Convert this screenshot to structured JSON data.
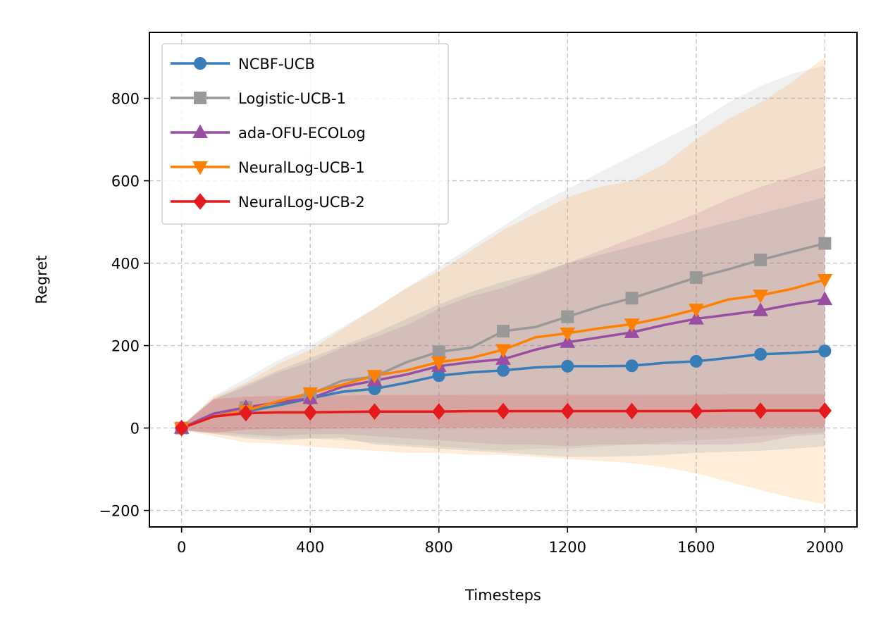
{
  "chart_data": {
    "type": "line",
    "title": "",
    "xlabel": "Timesteps",
    "ylabel": "Regret",
    "xlim": [
      -100,
      2100
    ],
    "ylim": [
      -240,
      960
    ],
    "xticks": [
      0,
      400,
      800,
      1200,
      1600,
      2000
    ],
    "xtick_labels": [
      "0",
      "400",
      "800",
      "1200",
      "1600",
      "2000"
    ],
    "yticks": [
      -200,
      0,
      200,
      400,
      600,
      800
    ],
    "ytick_labels": [
      "−200",
      "0",
      "200",
      "400",
      "600",
      "800"
    ],
    "grid": true,
    "legend_position": "top-left",
    "series": [
      {
        "name": "NCBF-UCB",
        "color": "#377eb8",
        "marker": "circle",
        "x": [
          0,
          100,
          200,
          300,
          400,
          500,
          600,
          700,
          800,
          900,
          1000,
          1100,
          1200,
          1300,
          1400,
          1500,
          1600,
          1700,
          1800,
          1900,
          2000
        ],
        "y": [
          0,
          28,
          40,
          55,
          72,
          88,
          95,
          110,
          127,
          135,
          140,
          147,
          150,
          150,
          151,
          158,
          162,
          170,
          179,
          182,
          187
        ],
        "band_upper": [
          5,
          70,
          105,
          140,
          170,
          200,
          230,
          265,
          300,
          330,
          355,
          375,
          400,
          420,
          440,
          460,
          480,
          500,
          520,
          540,
          560
        ],
        "band_lower": [
          -5,
          -14,
          -25,
          -30,
          -26,
          -24,
          -40,
          -45,
          -50,
          -55,
          -60,
          -65,
          -70,
          -70,
          -68,
          -65,
          -60,
          -58,
          -55,
          -50,
          -45
        ]
      },
      {
        "name": "Logistic-UCB-1",
        "color": "#999999",
        "marker": "square",
        "x": [
          0,
          100,
          200,
          300,
          400,
          500,
          600,
          700,
          800,
          900,
          1000,
          1100,
          1200,
          1300,
          1400,
          1500,
          1600,
          1700,
          1800,
          1900,
          2000
        ],
        "y": [
          0,
          32,
          50,
          62,
          82,
          115,
          125,
          160,
          185,
          195,
          235,
          245,
          270,
          295,
          315,
          340,
          365,
          385,
          408,
          428,
          448
        ],
        "band_upper": [
          5,
          78,
          120,
          165,
          200,
          245,
          290,
          340,
          390,
          440,
          490,
          540,
          580,
          620,
          660,
          700,
          740,
          790,
          830,
          860,
          880
        ],
        "band_lower": [
          -5,
          -14,
          -20,
          -25,
          -25,
          -30,
          -35,
          -40,
          -45,
          -50,
          -55,
          -50,
          -50,
          -45,
          -40,
          -35,
          -30,
          -25,
          -20,
          -15,
          -10
        ]
      },
      {
        "name": "ada-OFU-ECOLog",
        "color": "#984ea3",
        "marker": "triangle-up",
        "x": [
          0,
          100,
          200,
          300,
          400,
          500,
          600,
          700,
          800,
          900,
          1000,
          1100,
          1200,
          1300,
          1400,
          1500,
          1600,
          1700,
          1800,
          1900,
          2000
        ],
        "y": [
          0,
          35,
          50,
          62,
          72,
          100,
          115,
          130,
          150,
          160,
          167,
          190,
          208,
          220,
          232,
          250,
          265,
          275,
          285,
          300,
          312
        ],
        "band_upper": [
          5,
          70,
          100,
          135,
          160,
          195,
          220,
          250,
          290,
          320,
          340,
          370,
          400,
          430,
          460,
          490,
          520,
          555,
          585,
          610,
          635
        ],
        "band_lower": [
          -5,
          -10,
          -15,
          -20,
          -15,
          -15,
          -20,
          -25,
          -30,
          -35,
          -40,
          -40,
          -45,
          -40,
          -40,
          -40,
          -40,
          -40,
          -35,
          -20,
          -15
        ]
      },
      {
        "name": "NeuralLog-UCB-1",
        "color": "#ff7f00",
        "marker": "triangle-down",
        "x": [
          0,
          100,
          200,
          300,
          400,
          500,
          600,
          700,
          800,
          900,
          1000,
          1100,
          1200,
          1300,
          1400,
          1500,
          1600,
          1700,
          1800,
          1900,
          2000
        ],
        "y": [
          0,
          28,
          42,
          65,
          85,
          105,
          127,
          140,
          160,
          170,
          190,
          220,
          230,
          242,
          252,
          268,
          288,
          312,
          322,
          338,
          360
        ],
        "band_upper": [
          5,
          75,
          110,
          155,
          190,
          240,
          290,
          340,
          380,
          430,
          480,
          520,
          560,
          585,
          600,
          640,
          700,
          750,
          790,
          840,
          900
        ],
        "band_lower": [
          -5,
          -20,
          -35,
          -38,
          -45,
          -50,
          -55,
          -60,
          -60,
          -65,
          -65,
          -70,
          -75,
          -80,
          -85,
          -95,
          -110,
          -130,
          -150,
          -170,
          -185
        ]
      },
      {
        "name": "NeuralLog-UCB-2",
        "color": "#e41a1c",
        "marker": "diamond",
        "x": [
          0,
          100,
          200,
          300,
          400,
          500,
          600,
          700,
          800,
          900,
          1000,
          1100,
          1200,
          1300,
          1400,
          1500,
          1600,
          1700,
          1800,
          1900,
          2000
        ],
        "y": [
          0,
          28,
          36,
          38,
          38,
          39,
          40,
          40,
          40,
          41,
          41,
          41,
          41,
          41,
          41,
          41,
          41,
          42,
          42,
          42,
          42
        ],
        "band_upper": [
          5,
          70,
          76,
          78,
          78,
          79,
          80,
          80,
          80,
          81,
          81,
          81,
          81,
          81,
          81,
          81,
          81,
          82,
          82,
          82,
          82
        ],
        "band_lower": [
          -5,
          -12,
          -4,
          -2,
          -2,
          -1,
          0,
          0,
          0,
          1,
          1,
          1,
          1,
          1,
          1,
          1,
          1,
          2,
          2,
          2,
          2
        ]
      }
    ]
  }
}
